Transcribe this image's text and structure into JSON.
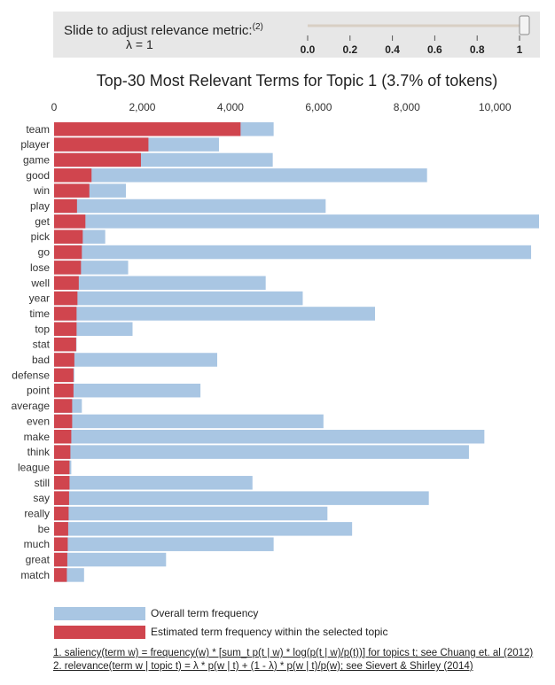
{
  "slider": {
    "label": "Slide to adjust relevance metric:",
    "label_sup": "(2)",
    "lambda_text": "λ = 1",
    "value": 1,
    "ticks": [
      "0.0",
      "0.2",
      "0.4",
      "0.6",
      "0.8",
      "1"
    ]
  },
  "colors": {
    "overall": "#a9c6e3",
    "topic": "#d0454e"
  },
  "legend": {
    "overall": "Overall term frequency",
    "topic": "Estimated term frequency within the selected topic"
  },
  "notes": {
    "saliency": "1. saliency(term w) = frequency(w) * [sum_t p(t | w) * log(p(t | w)/p(t))] for topics t; see Chuang et. al (2012)",
    "relevance": "2. relevance(term w | topic t) = λ * p(w | t) + (1 - λ) * p(w | t)/p(w); see Sievert & Shirley (2014)"
  },
  "chart_data": {
    "type": "bar",
    "orientation": "horizontal",
    "title": "Top-30 Most Relevant Terms for Topic 1 (3.7% of tokens)",
    "xlim": [
      0,
      11000
    ],
    "xticks": [
      0,
      2000,
      4000,
      6000,
      8000,
      10000
    ],
    "xtick_labels": [
      "0",
      "2,000",
      "4,000",
      "6,000",
      "8,000",
      "10,000"
    ],
    "categories": [
      "team",
      "player",
      "game",
      "good",
      "win",
      "play",
      "get",
      "pick",
      "go",
      "lose",
      "well",
      "year",
      "time",
      "top",
      "stat",
      "bad",
      "defense",
      "point",
      "average",
      "even",
      "make",
      "think",
      "league",
      "still",
      "say",
      "really",
      "be",
      "much",
      "great",
      "match"
    ],
    "series": [
      {
        "name": "Overall term frequency",
        "values": [
          4980,
          3740,
          4960,
          8460,
          1630,
          6160,
          11000,
          1160,
          10820,
          1680,
          4800,
          5640,
          7280,
          1780,
          510,
          3700,
          460,
          3320,
          630,
          6110,
          9760,
          9410,
          390,
          4500,
          8500,
          6200,
          6760,
          4980,
          2540,
          680
        ]
      },
      {
        "name": "Estimated term frequency within the selected topic",
        "values": [
          4230,
          2140,
          1970,
          850,
          800,
          520,
          710,
          650,
          630,
          610,
          560,
          530,
          510,
          510,
          500,
          460,
          440,
          440,
          410,
          410,
          390,
          370,
          350,
          350,
          340,
          330,
          320,
          310,
          300,
          290
        ]
      }
    ]
  }
}
